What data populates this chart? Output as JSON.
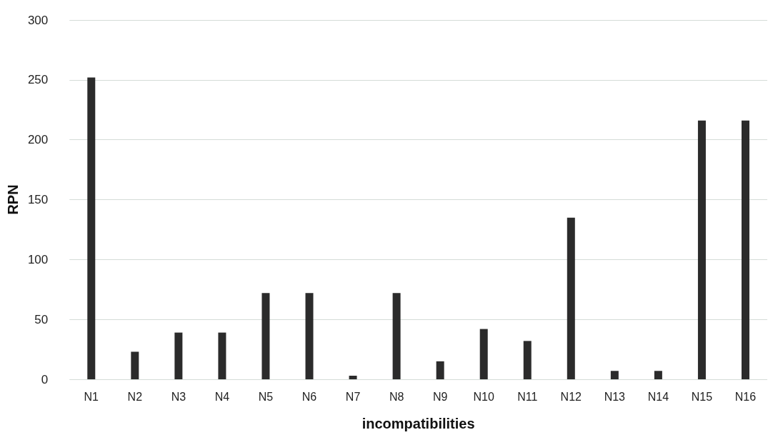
{
  "chart_data": {
    "type": "bar",
    "xlabel": "incompatibilities",
    "ylabel": "RPN",
    "categories": [
      "N1",
      "N2",
      "N3",
      "N4",
      "N5",
      "N6",
      "N7",
      "N8",
      "N9",
      "N10",
      "N11",
      "N12",
      "N13",
      "N14",
      "N15",
      "N16"
    ],
    "values": [
      252,
      23,
      39,
      39,
      72,
      72,
      3,
      72,
      15,
      42,
      32,
      135,
      7,
      7,
      216,
      216
    ],
    "color": "#2b2b2b",
    "ylim": [
      0,
      300
    ],
    "yticks": [
      0,
      50,
      100,
      150,
      200,
      250,
      300
    ],
    "grid": "y"
  }
}
